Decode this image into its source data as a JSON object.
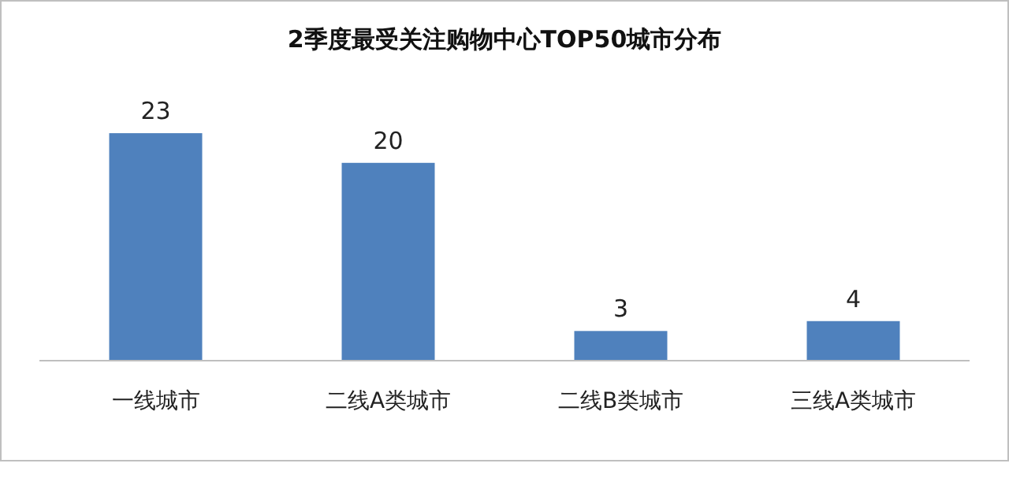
{
  "chart_data": {
    "type": "bar",
    "title": "2季度最受关注购物中心TOP50城市分布",
    "categories": [
      "一线城市",
      "二线A类城市",
      "二线B类城市",
      "三线A类城市"
    ],
    "values": [
      23,
      20,
      3,
      4
    ],
    "color": "#4f81bd",
    "data_labels": true
  }
}
